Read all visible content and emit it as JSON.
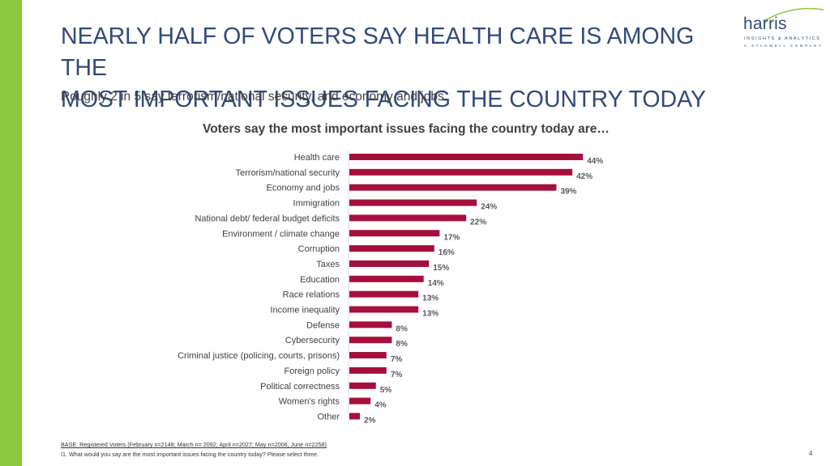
{
  "colors": {
    "accent": "#8dc63f",
    "bar": "#a50f3c",
    "title": "#2f4a7c"
  },
  "header": {
    "title_line1": "NEARLY HALF OF VOTERS SAY HEALTH CARE IS AMONG THE",
    "title_line2": "MOST IMPORTANT ISSUES FACING THE COUNTRY TODAY",
    "subtitle": "Roughly 2 in 5 say terrorism/national security, and economy and jobs."
  },
  "logo": {
    "word": "harris",
    "line1": "INSIGHTS & ANALYTICS",
    "line2": "A STAGWELL COMPANY"
  },
  "chart_data": {
    "type": "bar",
    "orientation": "horizontal",
    "title": "Voters say the most important issues facing the country today are…",
    "categories": [
      "Health care",
      "Terrorism/national security",
      "Economy and jobs",
      "Immigration",
      "National debt/ federal budget deficits",
      "Environment / climate change",
      "Corruption",
      "Taxes",
      "Education",
      "Race relations",
      "Income inequality",
      "Defense",
      "Cybersecurity",
      "Criminal justice (policing, courts, prisons)",
      "Foreign policy",
      "Political correctness",
      "Women's rights",
      "Other"
    ],
    "values": [
      44,
      42,
      39,
      24,
      22,
      17,
      16,
      15,
      14,
      13,
      13,
      8,
      8,
      7,
      7,
      5,
      4,
      2
    ],
    "value_suffix": "%",
    "xlim": [
      0,
      100
    ],
    "xlabel": "",
    "ylabel": "",
    "legend": "none",
    "grid": false
  },
  "footer": {
    "base": "BASE: Registered Voters (February n=2148; March n= 2092; April n=2027; May n=2006, June n=2258)",
    "question": "I1. What would you say are the most important issues facing the country today? Please select three.",
    "page_number": "4"
  }
}
